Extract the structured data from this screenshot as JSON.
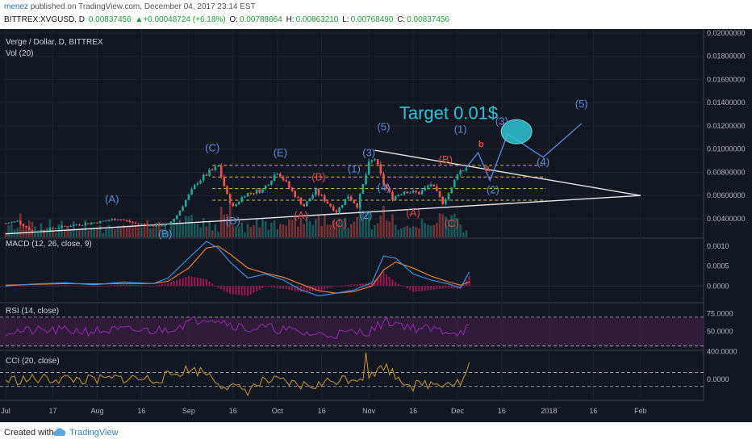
{
  "header": {
    "author": "menez",
    "published_text": "published on TradingView.com, December 04, 2017 23:14 EST",
    "symbol": "BITTREX:XVGUSD, D",
    "last": "0.00837456",
    "change": "▲+0.00048724 (+6.18%)",
    "o_label": "O:",
    "o_value": "0.00788664",
    "h_label": "H:",
    "h_value": "0.00863210",
    "l_label": "L:",
    "l_value": "0.00768490",
    "c_label": "C:",
    "c_value": "0.00837456"
  },
  "footer": {
    "created_with": "Created with",
    "brand": "TradingView"
  },
  "colors": {
    "background": "#131722",
    "up": "#26a69a",
    "down": "#ef5350",
    "wave_blue": "#5a8de0",
    "wave_red": "#e64a4a",
    "target": "#2ec4d6",
    "macd": "#3d8fe0",
    "signal": "#e6803a",
    "rsi": "#9c27b0",
    "cci": "#c99a3a"
  },
  "chart_data": [
    {
      "type": "candlestick",
      "title": "Verge / Dollar, D, BITTREX",
      "volume_label": "Vol (20)",
      "x_ticks": [
        "Jul",
        "17",
        "Aug",
        "16",
        "Sep",
        "16",
        "Oct",
        "16",
        "Nov",
        "16",
        "Dec",
        "16",
        "2018",
        "16",
        "Feb"
      ],
      "y_ticks": [
        "0.02000000",
        "0.01800000",
        "0.01600000",
        "0.01400000",
        "0.01200000",
        "0.01000000",
        "0.00800000",
        "0.00600000",
        "0.00400000"
      ],
      "ylim": [
        0.0024,
        0.0202
      ],
      "price_path": [
        [
          "2017-07-01",
          0.0036
        ],
        [
          "2017-07-05",
          0.0038
        ],
        [
          "2017-07-10",
          0.0029
        ],
        [
          "2017-07-15",
          0.0031
        ],
        [
          "2017-07-20",
          0.0033
        ],
        [
          "2017-07-25",
          0.0035
        ],
        [
          "2017-08-01",
          0.0037
        ],
        [
          "2017-08-08",
          0.004
        ],
        [
          "2017-08-14",
          0.0036
        ],
        [
          "2017-08-20",
          0.0034
        ],
        [
          "2017-08-25",
          0.0035
        ],
        [
          "2017-08-28",
          0.0043
        ],
        [
          "2017-08-31",
          0.0056
        ],
        [
          "2017-09-04",
          0.0072
        ],
        [
          "2017-09-08",
          0.008
        ],
        [
          "2017-09-11",
          0.0085
        ],
        [
          "2017-09-14",
          0.006
        ],
        [
          "2017-09-16",
          0.005
        ],
        [
          "2017-09-20",
          0.0061
        ],
        [
          "2017-09-26",
          0.0065
        ],
        [
          "2017-10-01",
          0.0081
        ],
        [
          "2017-10-03",
          0.0074
        ],
        [
          "2017-10-07",
          0.006
        ],
        [
          "2017-10-10",
          0.0051
        ],
        [
          "2017-10-14",
          0.0064
        ],
        [
          "2017-10-17",
          0.0056
        ],
        [
          "2017-10-21",
          0.0046
        ],
        [
          "2017-10-25",
          0.006
        ],
        [
          "2017-10-28",
          0.0051
        ],
        [
          "2017-11-01",
          0.0087
        ],
        [
          "2017-11-03",
          0.0092
        ],
        [
          "2017-11-06",
          0.007
        ],
        [
          "2017-11-09",
          0.0058
        ],
        [
          "2017-11-13",
          0.0064
        ],
        [
          "2017-11-18",
          0.0062
        ],
        [
          "2017-11-22",
          0.007
        ],
        [
          "2017-11-26",
          0.0054
        ],
        [
          "2017-11-29",
          0.0066
        ],
        [
          "2017-12-01",
          0.008
        ],
        [
          "2017-12-04",
          0.0084
        ]
      ],
      "trendlines": [
        {
          "points": [
            [
              "2017-07-01",
              0.0027
            ],
            [
              "2018-02-01",
              0.006
            ]
          ]
        },
        {
          "points": [
            [
              "2017-11-03",
              0.0099
            ],
            [
              "2018-02-01",
              0.006
            ]
          ]
        }
      ],
      "horizontal_levels": [
        0.0086,
        0.0076,
        0.0066,
        0.0056
      ],
      "wave_labels": [
        {
          "text": "(A)",
          "date": "2017-08-06",
          "price": 0.0054,
          "color": "blue"
        },
        {
          "text": "(B)",
          "date": "2017-08-24",
          "price": 0.0024,
          "color": "blue"
        },
        {
          "text": "(C)",
          "date": "2017-09-09",
          "price": 0.0098,
          "color": "blue"
        },
        {
          "text": "(D)",
          "date": "2017-09-16",
          "price": 0.0035,
          "color": "blue"
        },
        {
          "text": "(E)",
          "date": "2017-10-02",
          "price": 0.0094,
          "color": "blue"
        },
        {
          "text": "(A)",
          "date": "2017-10-09",
          "price": 0.004,
          "color": "red"
        },
        {
          "text": "(B)",
          "date": "2017-10-15",
          "price": 0.0073,
          "color": "red"
        },
        {
          "text": "(C)",
          "date": "2017-10-22",
          "price": 0.0033,
          "color": "red"
        },
        {
          "text": "(1)",
          "date": "2017-10-27",
          "price": 0.008,
          "color": "blue"
        },
        {
          "text": "(2)",
          "date": "2017-10-31",
          "price": 0.004,
          "color": "blue"
        },
        {
          "text": "(3)",
          "date": "2017-11-01",
          "price": 0.0094,
          "color": "blue"
        },
        {
          "text": "(4)",
          "date": "2017-11-06",
          "price": 0.0064,
          "color": "blue"
        },
        {
          "text": "(5)",
          "date": "2017-11-06",
          "price": 0.0116,
          "color": "blue"
        },
        {
          "text": "(A)",
          "date": "2017-11-16",
          "price": 0.0042,
          "color": "red"
        },
        {
          "text": "(B)",
          "date": "2017-11-27",
          "price": 0.0088,
          "color": "red"
        },
        {
          "text": "(C)",
          "date": "2017-11-29",
          "price": 0.0033,
          "color": "red"
        },
        {
          "text": "(1)",
          "date": "2017-12-02",
          "price": 0.0114,
          "color": "blue"
        },
        {
          "text": "b",
          "date": "2017-12-09",
          "price": 0.0102,
          "color": "red"
        },
        {
          "text": "a",
          "date": "2017-12-11",
          "price": 0.0081,
          "color": "red"
        },
        {
          "text": "(2)",
          "date": "2017-12-13",
          "price": 0.0062,
          "color": "blue"
        },
        {
          "text": "(3)",
          "date": "2017-12-16",
          "price": 0.0121,
          "color": "blue"
        },
        {
          "text": "(4)",
          "date": "2017-12-30",
          "price": 0.0086,
          "color": "blue"
        },
        {
          "text": "(5)",
          "date": "2018-01-12",
          "price": 0.0136,
          "color": "blue"
        }
      ],
      "annotation": {
        "text": "Target 0.01$",
        "date": "2017-11-28",
        "price": 0.0126
      },
      "projection_path": [
        [
          "2017-12-04",
          0.0084
        ],
        [
          "2017-12-08",
          0.0097
        ],
        [
          "2017-12-12",
          0.0073
        ],
        [
          "2017-12-18",
          0.0113
        ],
        [
          "2017-12-30",
          0.0093
        ],
        [
          "2018-01-12",
          0.0122
        ]
      ],
      "target_ellipse": {
        "date": "2017-12-21",
        "price": 0.0115
      }
    },
    {
      "type": "line",
      "title": "MACD (12, 26, close, 9)",
      "y_ticks": [
        "0.0010",
        "0.0005",
        "0.0000"
      ],
      "ylim": [
        -0.0004,
        0.0012
      ],
      "series": [
        {
          "values": [
            [
              0,
              0.0
            ],
            [
              10,
              5e-05
            ],
            [
              20,
              8e-05
            ],
            [
              30,
              3e-05
            ],
            [
              40,
              0.0001
            ],
            [
              50,
              6e-05
            ],
            [
              55,
              0.0002
            ],
            [
              62,
              0.0007
            ],
            [
              68,
              0.00112
            ],
            [
              72,
              0.00095
            ],
            [
              76,
              0.0006
            ],
            [
              82,
              0.0002
            ],
            [
              88,
              0.0003
            ],
            [
              94,
              0.00015
            ],
            [
              100,
              -0.0001
            ],
            [
              106,
              -0.00025
            ],
            [
              112,
              -0.00018
            ],
            [
              118,
              -0.0001
            ],
            [
              124,
              8e-05
            ],
            [
              128,
              0.00075
            ],
            [
              132,
              0.0007
            ],
            [
              138,
              0.0003
            ],
            [
              144,
              0.00015
            ],
            [
              150,
              5e-05
            ],
            [
              154,
              -5e-05
            ],
            [
              157,
              0.00035
            ]
          ]
        },
        {
          "values": [
            [
              0,
              2e-05
            ],
            [
              10,
              4e-05
            ],
            [
              20,
              6e-05
            ],
            [
              30,
              5e-05
            ],
            [
              40,
              6e-05
            ],
            [
              50,
              6e-05
            ],
            [
              55,
              0.00012
            ],
            [
              62,
              0.00045
            ],
            [
              68,
              0.00095
            ],
            [
              72,
              0.001
            ],
            [
              76,
              0.0008
            ],
            [
              82,
              0.00045
            ],
            [
              88,
              0.00032
            ],
            [
              94,
              0.00022
            ],
            [
              100,
              5e-05
            ],
            [
              106,
              -0.00012
            ],
            [
              112,
              -0.00018
            ],
            [
              118,
              -0.00014
            ],
            [
              124,
              0.0
            ],
            [
              128,
              0.0004
            ],
            [
              132,
              0.0006
            ],
            [
              138,
              0.00045
            ],
            [
              144,
              0.00025
            ],
            [
              150,
              0.0001
            ],
            [
              154,
              2e-05
            ],
            [
              157,
              0.0001
            ]
          ]
        }
      ]
    },
    {
      "type": "line",
      "title": "RSI (14, close)",
      "y_ticks": [
        "75.0000",
        "50.0000"
      ],
      "ylim": [
        25,
        90
      ],
      "bands": [
        70,
        30
      ]
    },
    {
      "type": "line",
      "title": "CCI (20, close)",
      "y_ticks": [
        "400.0000",
        "0.0000"
      ],
      "ylim": [
        -300,
        420
      ],
      "bands": [
        100,
        -100
      ]
    }
  ]
}
